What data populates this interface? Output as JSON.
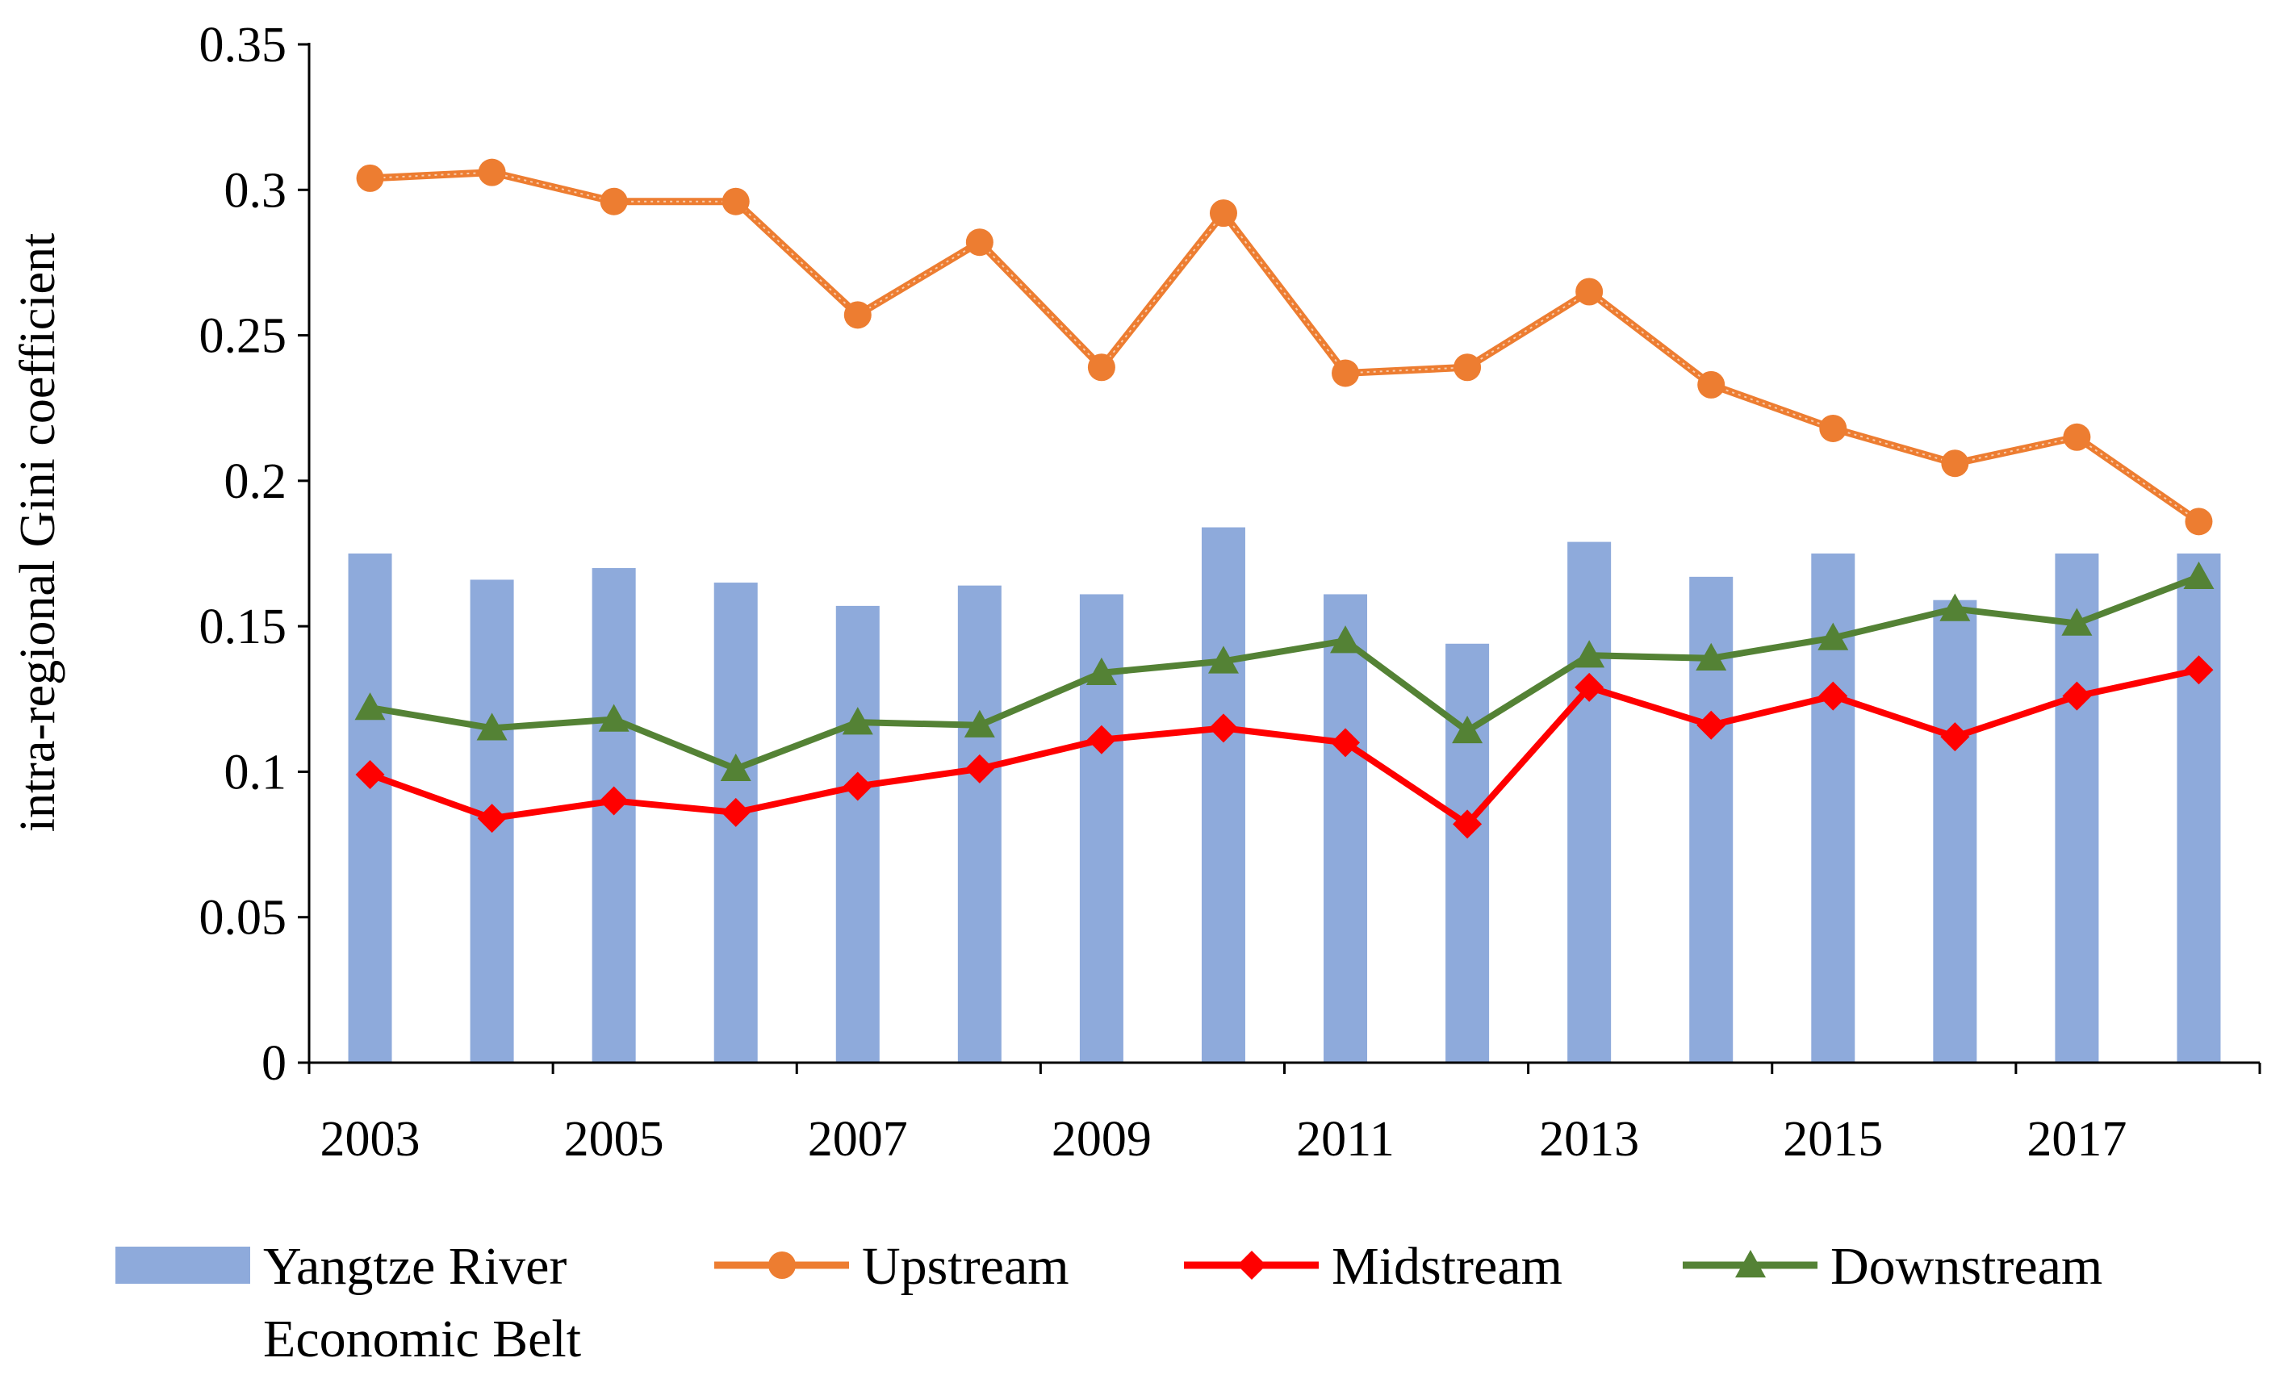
{
  "chart_data": {
    "type": "bar+line",
    "title": "",
    "xlabel": "",
    "ylabel": "intra-regional Gini coefficient",
    "ylim": [
      0,
      0.35
    ],
    "y_ticks": [
      0,
      0.05,
      0.1,
      0.15,
      0.2,
      0.25,
      0.3,
      0.35
    ],
    "y_tick_labels": [
      "0",
      "0.05",
      "0.1",
      "0.15",
      "0.2",
      "0.25",
      "0.3",
      "0.35"
    ],
    "categories": [
      "2003",
      "2004",
      "2005",
      "2006",
      "2007",
      "2008",
      "2009",
      "2010",
      "2011",
      "2012",
      "2013",
      "2014",
      "2015",
      "2016",
      "2017",
      "2018"
    ],
    "x_tick_labels": [
      "2003",
      "2005",
      "2007",
      "2009",
      "2011",
      "2013",
      "2015",
      "2017"
    ],
    "grid": false,
    "legend_position": "bottom",
    "series": [
      {
        "name": "Yangtze River Economic Belt",
        "name_lines": [
          "Yangtze River",
          "Economic Belt"
        ],
        "kind": "bar",
        "color": "#8eaadb",
        "values": [
          0.175,
          0.166,
          0.17,
          0.165,
          0.157,
          0.164,
          0.161,
          0.184,
          0.161,
          0.144,
          0.179,
          0.167,
          0.175,
          0.159,
          0.175,
          0.175
        ]
      },
      {
        "name": "Upstream",
        "kind": "line",
        "marker": "circle",
        "color": "#ed7d31",
        "values": [
          0.304,
          0.306,
          0.296,
          0.296,
          0.257,
          0.282,
          0.239,
          0.292,
          0.237,
          0.239,
          0.265,
          0.233,
          0.218,
          0.206,
          0.215,
          0.186
        ]
      },
      {
        "name": "Midstream",
        "kind": "line",
        "marker": "diamond",
        "color": "#ff0000",
        "values": [
          0.099,
          0.084,
          0.09,
          0.086,
          0.095,
          0.101,
          0.111,
          0.115,
          0.11,
          0.082,
          0.129,
          0.116,
          0.126,
          0.112,
          0.126,
          0.135
        ]
      },
      {
        "name": "Downstream",
        "kind": "line",
        "marker": "triangle",
        "color": "#548235",
        "values": [
          0.122,
          0.115,
          0.118,
          0.101,
          0.117,
          0.116,
          0.134,
          0.138,
          0.145,
          0.114,
          0.14,
          0.139,
          0.146,
          0.156,
          0.151,
          0.167
        ]
      }
    ]
  }
}
